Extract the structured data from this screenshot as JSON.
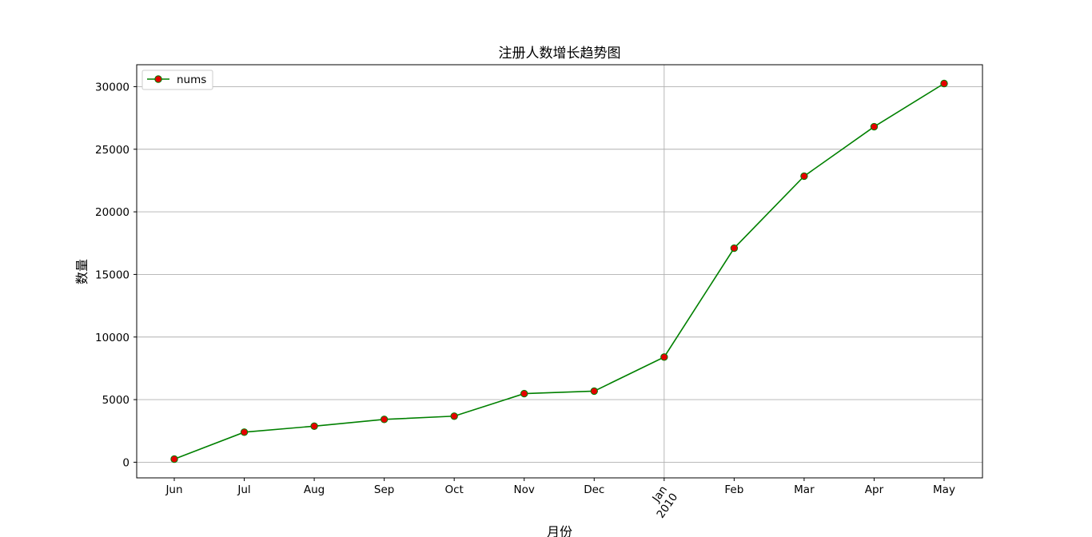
{
  "chart_data": {
    "type": "line",
    "title": "注册人数增长趋势图",
    "xlabel": "月份",
    "ylabel": "数量",
    "x": [
      "Jun",
      "Jul",
      "Aug",
      "Sep",
      "Oct",
      "Nov",
      "Dec",
      "Jan\n2010",
      "Feb",
      "Mar",
      "Apr",
      "May"
    ],
    "series": [
      {
        "name": "nums",
        "values": [
          250,
          2400,
          2880,
          3420,
          3680,
          5480,
          5680,
          8400,
          17100,
          22850,
          26800,
          30250
        ],
        "line_color": "#008000",
        "marker_color": "#e60000"
      }
    ],
    "yticks": [
      0,
      5000,
      10000,
      15000,
      20000,
      25000,
      30000
    ],
    "ylim": [
      -1250,
      31750
    ],
    "grid": true,
    "legend_position": "upper-left"
  }
}
